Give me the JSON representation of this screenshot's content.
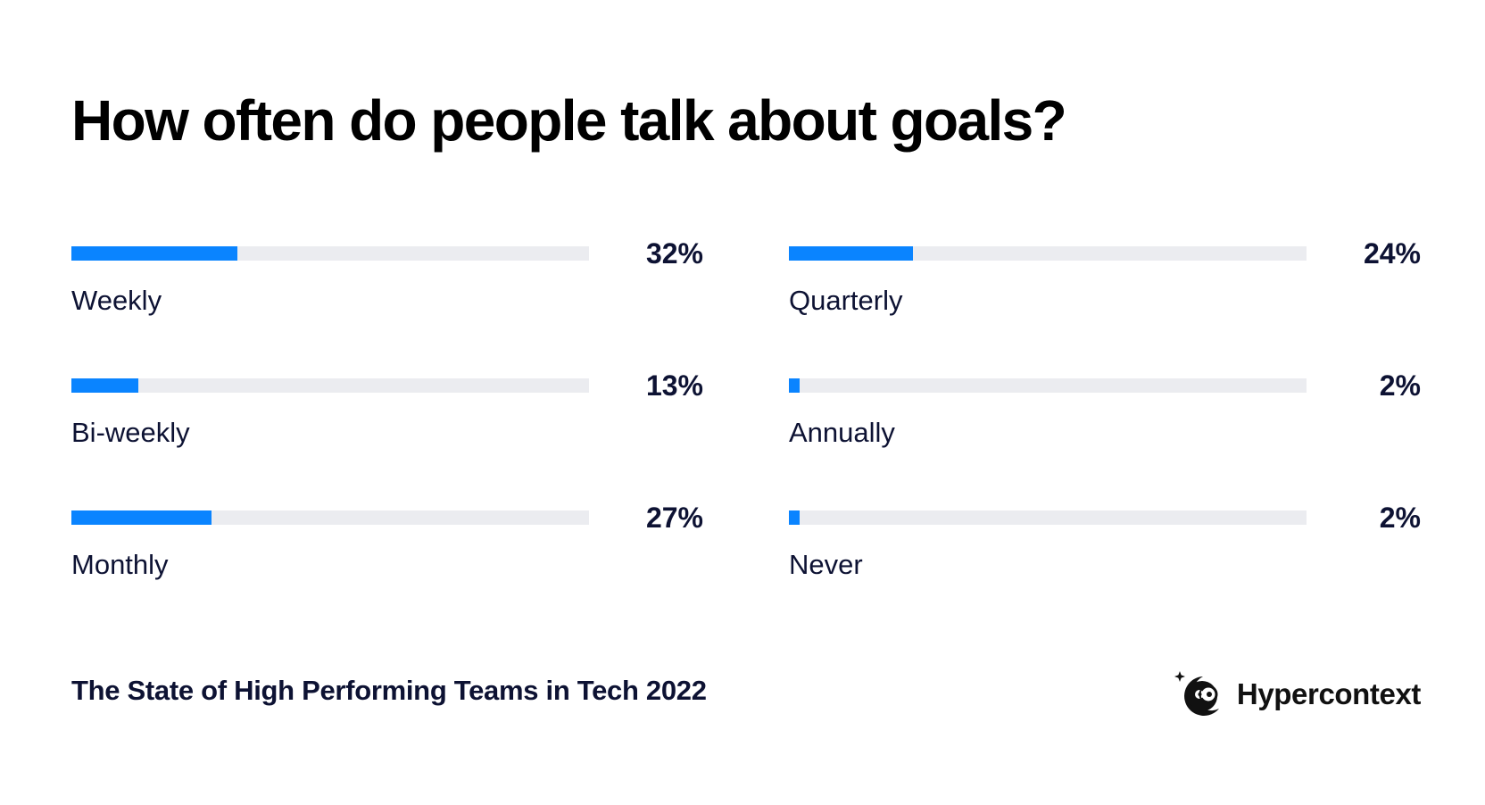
{
  "chart_data": {
    "type": "bar",
    "title": "How often do people talk about goals?",
    "categories": [
      "Weekly",
      "Bi-weekly",
      "Monthly",
      "Quarterly",
      "Annually",
      "Never"
    ],
    "values": [
      32,
      13,
      27,
      24,
      2,
      2
    ],
    "value_labels": [
      "32%",
      "13%",
      "27%",
      "24%",
      "2%",
      "2%"
    ],
    "ylim": [
      0,
      100
    ],
    "orientation": "horizontal",
    "grid": false,
    "colors": {
      "fill": "#0a84ff",
      "track": "#ebecf0"
    }
  },
  "footer": {
    "source": "The State of High Performing Teams in Tech 2022",
    "brand": "Hypercontext",
    "brand_icon": "hypercontext-logo-icon"
  }
}
